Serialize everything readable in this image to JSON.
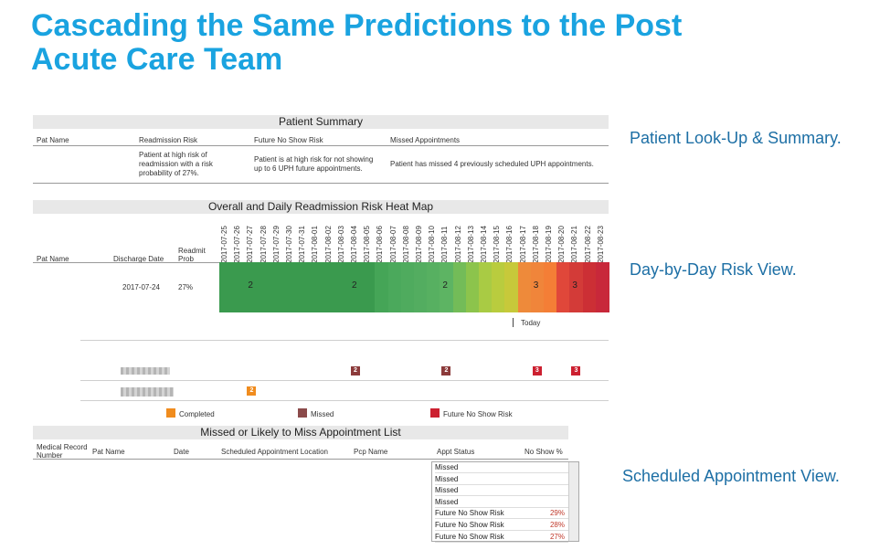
{
  "title": "Cascading the Same Predictions to the Post Acute Care Team",
  "callouts": {
    "summary": "Patient Look-Up & Summary.",
    "risk": "Day-by-Day Risk View.",
    "appt": "Scheduled Appointment View."
  },
  "patient_summary": {
    "header": "Patient Summary",
    "columns": [
      "Pat Name",
      "Readmission Risk",
      "Future No Show Risk",
      "Missed Appointments"
    ],
    "readmission_text": "Patient at high risk of readmission with a risk probability of 27%.",
    "noshow_text": "Patient is at high risk for not showing up to 6 UPH future appointments.",
    "missed_text": "Patient has missed 4 previously scheduled UPH appointments."
  },
  "heatmap": {
    "header": "Overall and Daily Readmission Risk Heat Map",
    "col_pat": "Pat Name",
    "col_discharge": "Discharge Date",
    "col_readmit": "Readmit Prob",
    "discharge_date": "2017-07-24",
    "readmit_prob": "27%",
    "dates": [
      "2017-07-25",
      "2017-07-26",
      "2017-07-27",
      "2017-07-28",
      "2017-07-29",
      "2017-07-30",
      "2017-07-31",
      "2017-08-01",
      "2017-08-02",
      "2017-08-03",
      "2017-08-04",
      "2017-08-05",
      "2017-08-06",
      "2017-08-07",
      "2017-08-08",
      "2017-08-09",
      "2017-08-10",
      "2017-08-11",
      "2017-08-12",
      "2017-08-13",
      "2017-08-14",
      "2017-08-15",
      "2017-08-16",
      "2017-08-17",
      "2017-08-18",
      "2017-08-19",
      "2017-08-20",
      "2017-08-21",
      "2017-08-22",
      "2017-08-23"
    ],
    "cell_colors": [
      "#3a9a4e",
      "#3a9a4e",
      "#3a9a4e",
      "#3a9a4e",
      "#3a9a4e",
      "#3a9a4e",
      "#3a9a4e",
      "#3a9a4e",
      "#3a9a4e",
      "#3a9a4e",
      "#3a9a4e",
      "#3a9a4e",
      "#45a557",
      "#4ba95c",
      "#4fab5e",
      "#53ad60",
      "#57b061",
      "#5db463",
      "#73bc58",
      "#8cc44c",
      "#a9cb44",
      "#b9cc3e",
      "#c7c93a",
      "#ee8a3a",
      "#f0853a",
      "#f47e36",
      "#e0473a",
      "#d33b38",
      "#cc2f35",
      "#c8283a"
    ],
    "risk_labels": [
      {
        "index": 2,
        "text": "2"
      },
      {
        "index": 10,
        "text": "2"
      },
      {
        "index": 17,
        "text": "2"
      },
      {
        "index": 24,
        "text": "3"
      },
      {
        "index": 27,
        "text": "3"
      }
    ],
    "today_label": "Today"
  },
  "appointments_timeline": {
    "row1_badges": [
      {
        "index": 10,
        "text": "2",
        "color": "#8b3a3a"
      },
      {
        "index": 17,
        "text": "2",
        "color": "#8b3a3a"
      },
      {
        "index": 24,
        "text": "3",
        "color": "#cc2030"
      },
      {
        "index": 27,
        "text": "3",
        "color": "#cc2030"
      }
    ],
    "row2_badges": [
      {
        "index": 2,
        "text": "2",
        "color": "#f08c1e"
      }
    ]
  },
  "legend": {
    "completed": "Completed",
    "missed": "Missed",
    "future": "Future No Show Risk",
    "colors": {
      "completed": "#f08c1e",
      "missed": "#8b4a4a",
      "future": "#cc2030"
    }
  },
  "appt_list": {
    "header": "Missed or Likely to Miss Appointment List",
    "columns": {
      "mrn": "Medical Record Number",
      "pat_name": "Pat Name",
      "date": "Date",
      "location": "Scheduled Appointment Location",
      "pcp": "Pcp Name",
      "status": "Appt Status",
      "noshow": "No Show %"
    },
    "rows": [
      {
        "status": "Missed",
        "pct": ""
      },
      {
        "status": "Missed",
        "pct": ""
      },
      {
        "status": "Missed",
        "pct": ""
      },
      {
        "status": "Missed",
        "pct": ""
      },
      {
        "status": "Future No Show Risk",
        "pct": "29%"
      },
      {
        "status": "Future No Show Risk",
        "pct": "28%"
      },
      {
        "status": "Future No Show Risk",
        "pct": "27%"
      }
    ]
  }
}
